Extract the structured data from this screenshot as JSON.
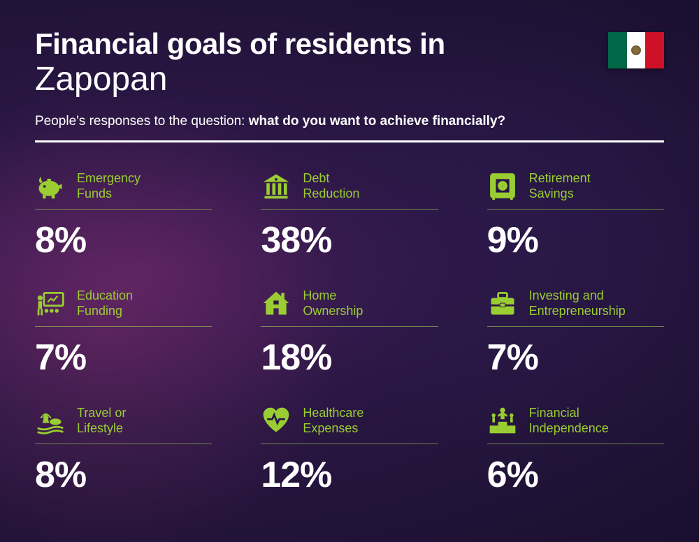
{
  "title_line1": "Financial goals of residents in",
  "title_city": "Zapopan",
  "subtitle_prefix": "People's responses to the question: ",
  "subtitle_bold": "what do you want to achieve financially?",
  "accent_color": "#9acd32",
  "text_color": "#ffffff",
  "background_gradient": [
    "#4a1f5e",
    "#2a1744",
    "#1a0f2e"
  ],
  "flag": {
    "country": "Mexico",
    "colors": [
      "#006847",
      "#ffffff",
      "#ce1126"
    ]
  },
  "value_fontsize": 52,
  "label_fontsize": 18,
  "title_fontsize": 42,
  "city_fontsize": 48,
  "grid": {
    "columns": 3,
    "rows": 3
  },
  "items": [
    {
      "icon": "piggy-bank",
      "label": "Emergency\nFunds",
      "value": "8%"
    },
    {
      "icon": "bank",
      "label": "Debt\nReduction",
      "value": "38%"
    },
    {
      "icon": "safe",
      "label": "Retirement\nSavings",
      "value": "9%"
    },
    {
      "icon": "presentation",
      "label": "Education\nFunding",
      "value": "7%"
    },
    {
      "icon": "house",
      "label": "Home\nOwnership",
      "value": "18%"
    },
    {
      "icon": "briefcase",
      "label": "Investing and\nEntrepreneurship",
      "value": "7%"
    },
    {
      "icon": "travel",
      "label": "Travel or\nLifestyle",
      "value": "8%"
    },
    {
      "icon": "health",
      "label": "Healthcare\nExpenses",
      "value": "12%"
    },
    {
      "icon": "podium",
      "label": "Financial\nIndependence",
      "value": "6%"
    }
  ]
}
